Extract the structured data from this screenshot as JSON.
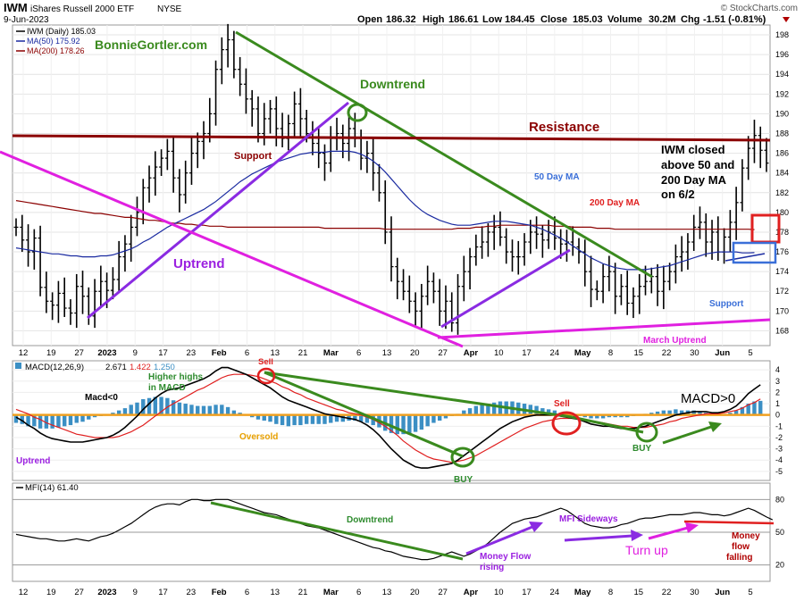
{
  "header": {
    "symbol": "IWM",
    "name": "iShares Russell 2000 ETF",
    "exchange": "NYSE",
    "date": "9-Jun-2023",
    "open_label": "Open",
    "open": "186.32",
    "high_label": "High",
    "high": "186.61",
    "low_label": "Low",
    "low": "184.45",
    "close_label": "Close",
    "close": "185.03",
    "volume_label": "Volume",
    "volume": "30.2M",
    "chg_label": "Chg",
    "chg": "-1.51 (-0.81%)",
    "watermark": "© StockCharts.com"
  },
  "colors": {
    "price": "#000000",
    "ma50": "#1a2aa0",
    "ma200": "#8b0000",
    "green_line": "#3a8a1e",
    "magenta": "#e020e0",
    "purple": "#8a2be2",
    "macd_hist": "#3b8fc4",
    "signal": "#e02020",
    "zero_line": "#f0a020",
    "green_text": "#2e8b2e",
    "red_text": "#b00000",
    "blue_text": "#3a6fd8",
    "purple_text": "#9b20e0"
  },
  "chart_data": [
    {
      "type": "line",
      "panel": "price",
      "legend": [
        "IWM (Daily) 185.03",
        "MA(50) 175.92",
        "MA(200) 178.26"
      ],
      "y_ticks": [
        168,
        170,
        172,
        174,
        176,
        178,
        180,
        182,
        184,
        186,
        188,
        190,
        192,
        194,
        196,
        198
      ],
      "ylim": [
        166.5,
        199
      ],
      "x_tick_labels": [
        "12",
        "19",
        "27",
        "2023",
        "9",
        "17",
        "23",
        "Feb",
        "6",
        "13",
        "21",
        "Mar",
        "6",
        "13",
        "20",
        "27",
        "Apr",
        "10",
        "17",
        "24",
        "May",
        "8",
        "15",
        "22",
        "30",
        "Jun",
        "5"
      ],
      "close": [
        178.5,
        177.2,
        176.0,
        177.4,
        172.4,
        171.0,
        170.6,
        171.8,
        170.3,
        169.8,
        172.5,
        171.5,
        169.5,
        172.0,
        173.0,
        172.1,
        173.2,
        175.5,
        176.8,
        178.5,
        180.0,
        182.5,
        183.5,
        184.6,
        185.5,
        186.2,
        183.5,
        181.8,
        184.0,
        186.0,
        187.2,
        188.0,
        190.0,
        194.5,
        196.5,
        197.5,
        194.5,
        193.0,
        191.5,
        190.5,
        188.0,
        189.5,
        190.5,
        188.5,
        187.5,
        189.0,
        191.0,
        189.5,
        188.0,
        187.0,
        186.0,
        185.0,
        187.5,
        188.0,
        187.0,
        188.5,
        187.5,
        185.5,
        186.0,
        184.0,
        182.0,
        178.0,
        174.5,
        173.0,
        172.0,
        171.0,
        170.0,
        171.5,
        173.0,
        172.0,
        170.0,
        171.0,
        168.8,
        172.5,
        174.0,
        175.5,
        176.5,
        177.0,
        178.0,
        178.5,
        177.5,
        176.0,
        175.5,
        175.5,
        177.0,
        178.0,
        177.8,
        177.2,
        178.0,
        177.4,
        176.8,
        177.0,
        176.5,
        176.0,
        174.0,
        172.2,
        172.0,
        173.5,
        174.0,
        171.5,
        172.5,
        170.8,
        171.5,
        172.5,
        173.0,
        173.5,
        172.0,
        173.0,
        174.0,
        175.5,
        176.0,
        177.0,
        178.5,
        179.0,
        177.0,
        178.0,
        176.0,
        177.5,
        179.0,
        181.0,
        184.5,
        186.5,
        187.8,
        186.3,
        185.0
      ],
      "ma50": [
        176.4,
        176.3,
        176.2,
        176.1,
        176.0,
        175.9,
        175.8,
        175.8,
        175.7,
        175.6,
        175.6,
        175.5,
        175.5,
        175.5,
        175.6,
        175.6,
        175.7,
        175.9,
        176.1,
        176.3,
        176.6,
        177.0,
        177.3,
        177.7,
        178.1,
        178.5,
        178.8,
        179.1,
        179.4,
        179.7,
        180.0,
        180.3,
        180.7,
        181.1,
        181.6,
        182.1,
        182.6,
        183.1,
        183.5,
        183.9,
        184.2,
        184.5,
        184.8,
        185.1,
        185.3,
        185.5,
        185.7,
        185.9,
        186.0,
        186.1,
        186.1,
        186.1,
        186.2,
        186.2,
        186.2,
        186.2,
        186.1,
        185.9,
        185.6,
        185.2,
        184.7,
        184.1,
        183.4,
        182.7,
        182.0,
        181.3,
        180.7,
        180.2,
        179.8,
        179.5,
        179.2,
        179.0,
        178.8,
        178.7,
        178.7,
        178.7,
        178.8,
        178.9,
        179.0,
        179.1,
        179.1,
        179.1,
        179.0,
        178.9,
        178.8,
        178.7,
        178.5,
        178.3,
        178.0,
        177.7,
        177.4,
        177.0,
        176.6,
        176.2,
        175.8,
        175.4,
        175.1,
        174.8,
        174.6,
        174.4,
        174.3,
        174.2,
        174.2,
        174.2,
        174.2,
        174.3,
        174.4,
        174.5,
        174.6,
        174.8,
        175.0,
        175.2,
        175.4,
        175.6,
        175.8,
        175.9,
        176.0,
        176.0,
        176.0,
        176.0,
        175.9,
        175.9,
        175.92
      ],
      "ma200": [
        181.2,
        181.1,
        181.0,
        180.9,
        180.8,
        180.7,
        180.6,
        180.5,
        180.4,
        180.3,
        180.2,
        180.1,
        180.0,
        179.9,
        179.9,
        179.8,
        179.7,
        179.6,
        179.5,
        179.5,
        179.4,
        179.3,
        179.2,
        179.2,
        179.1,
        179.0,
        178.9,
        178.9,
        178.8,
        178.8,
        178.7,
        178.7,
        178.6,
        178.6,
        178.6,
        178.5,
        178.5,
        178.5,
        178.5,
        178.5,
        178.5,
        178.5,
        178.5,
        178.5,
        178.5,
        178.5,
        178.5,
        178.5,
        178.5,
        178.5,
        178.5,
        178.4,
        178.4,
        178.4,
        178.4,
        178.4,
        178.4,
        178.4,
        178.4,
        178.4,
        178.4,
        178.3,
        178.3,
        178.3,
        178.3,
        178.3,
        178.3,
        178.3,
        178.3,
        178.3,
        178.3,
        178.3,
        178.3,
        178.4,
        178.4,
        178.4,
        178.5,
        178.5,
        178.6,
        178.6,
        178.7,
        178.7,
        178.7,
        178.7,
        178.7,
        178.7,
        178.7,
        178.7,
        178.7,
        178.6,
        178.6,
        178.6,
        178.5,
        178.5,
        178.5,
        178.5,
        178.4,
        178.4,
        178.4,
        178.3,
        178.3,
        178.3,
        178.3,
        178.3,
        178.3,
        178.3,
        178.3,
        178.3,
        178.3,
        178.3,
        178.3,
        178.3,
        178.3,
        178.3,
        178.3,
        178.3,
        178.3,
        178.3,
        178.3,
        178.3,
        178.3,
        178.3,
        178.26
      ]
    },
    {
      "type": "line",
      "panel": "macd",
      "legend_label": "MACD(12,26,9)",
      "legend_values": [
        "2.671",
        "1.422",
        "1.250"
      ],
      "y_ticks": [
        -5,
        -4,
        -3,
        -2,
        -1,
        0,
        1,
        2,
        3,
        4
      ],
      "ylim": [
        -5.8,
        4.8
      ],
      "macd": [
        -0.2,
        -0.5,
        -0.9,
        -1.2,
        -1.6,
        -1.9,
        -2.1,
        -2.2,
        -2.3,
        -2.4,
        -2.4,
        -2.4,
        -2.3,
        -2.2,
        -2.1,
        -2.0,
        -1.8,
        -1.5,
        -1.1,
        -0.6,
        -0.1,
        0.5,
        1.0,
        1.5,
        1.9,
        2.2,
        2.3,
        2.4,
        2.6,
        2.8,
        3.0,
        3.2,
        3.5,
        3.9,
        4.2,
        4.2,
        4.0,
        3.8,
        3.6,
        3.3,
        3.0,
        2.7,
        2.4,
        2.0,
        1.6,
        1.3,
        1.1,
        0.9,
        0.7,
        0.5,
        0.3,
        0.1,
        0.0,
        -0.1,
        -0.2,
        -0.3,
        -0.4,
        -0.6,
        -0.9,
        -1.3,
        -1.8,
        -2.4,
        -3.0,
        -3.5,
        -4.0,
        -4.3,
        -4.6,
        -4.7,
        -4.7,
        -4.6,
        -4.5,
        -4.4,
        -4.3,
        -4.0,
        -3.6,
        -3.2,
        -2.8,
        -2.4,
        -2.0,
        -1.6,
        -1.2,
        -0.9,
        -0.6,
        -0.4,
        -0.2,
        -0.1,
        0.0,
        0.0,
        0.0,
        0.0,
        -0.1,
        -0.2,
        -0.3,
        -0.4,
        -0.6,
        -0.8,
        -0.9,
        -1.0,
        -1.0,
        -1.1,
        -1.2,
        -1.2,
        -1.2,
        -1.1,
        -1.0,
        -0.8,
        -0.6,
        -0.4,
        -0.2,
        0.0,
        0.1,
        0.2,
        0.3,
        0.3,
        0.3,
        0.2,
        0.2,
        0.3,
        0.5,
        0.8,
        1.3,
        1.9,
        2.3,
        2.671
      ],
      "signal": [
        0.5,
        0.3,
        0.1,
        -0.2,
        -0.4,
        -0.7,
        -0.9,
        -1.1,
        -1.3,
        -1.5,
        -1.7,
        -1.8,
        -1.9,
        -2.0,
        -2.0,
        -2.0,
        -2.0,
        -1.9,
        -1.7,
        -1.5,
        -1.2,
        -0.9,
        -0.5,
        -0.1,
        0.3,
        0.7,
        1.0,
        1.3,
        1.6,
        1.9,
        2.2,
        2.4,
        2.7,
        3.0,
        3.3,
        3.5,
        3.6,
        3.6,
        3.6,
        3.5,
        3.4,
        3.2,
        3.0,
        2.8,
        2.5,
        2.3,
        2.0,
        1.8,
        1.5,
        1.3,
        1.1,
        0.9,
        0.7,
        0.5,
        0.4,
        0.2,
        0.1,
        0.0,
        -0.2,
        -0.4,
        -0.7,
        -1.0,
        -1.4,
        -1.8,
        -2.3,
        -2.7,
        -3.1,
        -3.4,
        -3.7,
        -3.9,
        -4.0,
        -4.1,
        -4.2,
        -4.1,
        -4.0,
        -3.8,
        -3.6,
        -3.3,
        -3.0,
        -2.7,
        -2.4,
        -2.1,
        -1.8,
        -1.5,
        -1.2,
        -1.0,
        -0.8,
        -0.6,
        -0.5,
        -0.4,
        -0.3,
        -0.3,
        -0.3,
        -0.3,
        -0.4,
        -0.5,
        -0.6,
        -0.7,
        -0.8,
        -0.9,
        -1.0,
        -1.0,
        -1.1,
        -1.1,
        -1.1,
        -1.0,
        -0.9,
        -0.8,
        -0.6,
        -0.5,
        -0.3,
        -0.2,
        -0.1,
        0.0,
        0.1,
        0.1,
        0.1,
        0.2,
        0.3,
        0.4,
        0.6,
        0.9,
        1.1,
        1.422
      ]
    },
    {
      "type": "line",
      "panel": "mfi",
      "legend": "MFI(14) 61.40",
      "y_ticks": [
        20,
        50,
        80
      ],
      "ylim": [
        5,
        95
      ],
      "mfi": [
        48,
        47,
        46,
        45,
        44,
        44,
        43,
        42,
        42,
        43,
        44,
        43,
        42,
        44,
        46,
        47,
        49,
        52,
        55,
        58,
        62,
        66,
        70,
        73,
        75,
        76,
        76,
        75,
        78,
        80,
        80,
        79,
        79,
        80,
        80,
        80,
        78,
        76,
        74,
        72,
        70,
        68,
        67,
        66,
        64,
        62,
        60,
        58,
        56,
        55,
        54,
        52,
        50,
        48,
        46,
        44,
        42,
        40,
        38,
        36,
        35,
        33,
        32,
        30,
        28,
        27,
        26,
        25,
        25,
        26,
        28,
        30,
        32,
        30,
        28,
        30,
        33,
        36,
        40,
        45,
        50,
        54,
        58,
        60,
        62,
        63,
        64,
        66,
        68,
        70,
        72,
        70,
        66,
        62,
        58,
        56,
        55,
        54,
        54,
        55,
        57,
        58,
        60,
        62,
        63,
        63,
        64,
        65,
        66,
        66,
        66,
        67,
        68,
        68,
        67,
        66,
        66,
        65,
        66,
        68,
        70,
        72,
        70,
        67,
        64,
        61.4
      ]
    }
  ],
  "legends": {
    "price_main": "IWM (Daily) 185.03",
    "ma50": "MA(50) 175.92",
    "ma200": "MA(200) 178.26",
    "macd_label": "MACD(12,26,9)",
    "macd_v1": "2.671",
    "macd_v2": "1.422",
    "macd_v3": "1.250",
    "mfi": "MFI(14) 61.40"
  },
  "annotations": {
    "site": "BonnieGortler.com",
    "downtrend": "Downtrend",
    "resistance": "Resistance",
    "support_feb": "Support",
    "ma50": "50 Day MA",
    "ma200": "200 Day MA",
    "closed_1": "IWM closed",
    "closed_2": "above 50 and",
    "closed_3": "200 Day MA",
    "closed_4": "on 6/2",
    "uptrend": "Uptrend",
    "support_may": "Support",
    "march_uptrend": "March Uptrend",
    "sell1": "Sell",
    "higher_1": "Higher highs",
    "higher_2": "in MACD",
    "macd0": "Macd<0",
    "sell2": "Sell",
    "buy1": "BUY",
    "buy2": "BUY",
    "macd_gt0": "MACD>0",
    "oversold": "Oversold",
    "macd_uptrend": "Uptrend",
    "mfi_downtrend": "Downtrend",
    "mfi_sideways": "MFI Sideways",
    "money_rising_1": "Money Flow",
    "money_rising_2": "rising",
    "turn_up": "Turn up",
    "money_falling_1": "Money",
    "money_falling_2": "flow",
    "money_falling_3": "falling"
  }
}
